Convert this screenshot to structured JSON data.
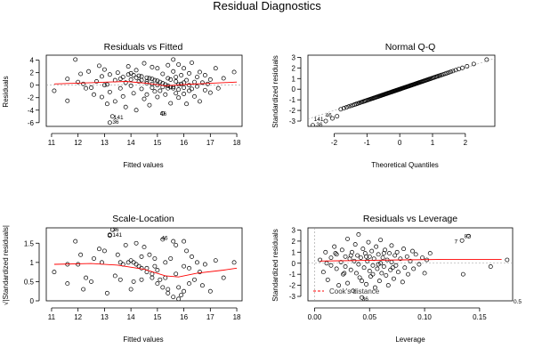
{
  "page_title": "Residual Diagnostics",
  "chart_data": [
    {
      "id": "rvf",
      "type": "scatter",
      "title": "Residuals vs Fitted",
      "xlabel": "Fitted values",
      "ylabel": "Residuals",
      "xlim": [
        10.8,
        18.2
      ],
      "ylim": [
        -6.6,
        4.8
      ],
      "xticks": [
        11,
        12,
        13,
        14,
        15,
        16,
        17,
        18
      ],
      "yticks": [
        -6,
        -4,
        -2,
        0,
        2,
        4
      ],
      "smooth_color": "#ff0000",
      "smooth": [
        [
          11.1,
          0.2
        ],
        [
          12.5,
          0.4
        ],
        [
          13.8,
          0.6
        ],
        [
          14.6,
          0.3
        ],
        [
          15.3,
          -0.1
        ],
        [
          16.0,
          0.1
        ],
        [
          17.0,
          0.3
        ],
        [
          18.0,
          0.5
        ]
      ],
      "labels": [
        {
          "text": "141",
          "x": 13.35,
          "y": -5.2
        },
        {
          "text": "36",
          "x": 13.3,
          "y": -5.9
        },
        {
          "text": "46",
          "x": 15.1,
          "y": -4.6
        }
      ],
      "points": [
        [
          11.1,
          -0.9
        ],
        [
          11.6,
          1.0
        ],
        [
          11.6,
          -2.5
        ],
        [
          11.9,
          4.1
        ],
        [
          12.1,
          1.8
        ],
        [
          12.2,
          0.2
        ],
        [
          12.3,
          -0.5
        ],
        [
          12.4,
          2.2
        ],
        [
          12.5,
          -0.4
        ],
        [
          12.6,
          -1.5
        ],
        [
          12.7,
          0.6
        ],
        [
          12.8,
          3.1
        ],
        [
          12.9,
          1.4
        ],
        [
          12.9,
          -1.9
        ],
        [
          13.0,
          2.5
        ],
        [
          13.1,
          0.1
        ],
        [
          13.1,
          -3.0
        ],
        [
          13.2,
          1.7
        ],
        [
          13.2,
          -1.1
        ],
        [
          13.3,
          -5.0
        ],
        [
          13.2,
          -6.0
        ],
        [
          13.4,
          0.8
        ],
        [
          13.4,
          -2.6
        ],
        [
          13.5,
          2.0
        ],
        [
          13.6,
          -0.5
        ],
        [
          13.7,
          1.3
        ],
        [
          13.7,
          -1.8
        ],
        [
          13.8,
          0.4
        ],
        [
          13.8,
          -3.5
        ],
        [
          13.9,
          3.0
        ],
        [
          13.9,
          1.7
        ],
        [
          14.0,
          1.9
        ],
        [
          14.0,
          0.9
        ],
        [
          14.0,
          -0.1
        ],
        [
          14.1,
          1.6
        ],
        [
          14.1,
          -1.3
        ],
        [
          14.2,
          -4.0
        ],
        [
          14.2,
          2.4
        ],
        [
          14.3,
          1.5
        ],
        [
          14.3,
          0.6
        ],
        [
          14.4,
          -0.6
        ],
        [
          14.4,
          1.4
        ],
        [
          14.5,
          3.5
        ],
        [
          14.5,
          -2.2
        ],
        [
          14.6,
          1.2
        ],
        [
          14.6,
          0.3
        ],
        [
          14.6,
          -1.5
        ],
        [
          14.7,
          1.1
        ],
        [
          14.7,
          -3.2
        ],
        [
          14.8,
          2.9
        ],
        [
          14.8,
          1.0
        ],
        [
          14.8,
          -0.4
        ],
        [
          14.9,
          0.8
        ],
        [
          14.9,
          -1.0
        ],
        [
          15.0,
          0.7
        ],
        [
          15.0,
          2.7
        ],
        [
          15.0,
          -1.9
        ],
        [
          15.1,
          0.5
        ],
        [
          15.1,
          -0.9
        ],
        [
          15.2,
          1.8
        ],
        [
          15.2,
          0.3
        ],
        [
          15.2,
          -4.5
        ],
        [
          15.3,
          0.1
        ],
        [
          15.3,
          -1.5
        ],
        [
          15.4,
          3.2
        ],
        [
          15.4,
          -0.1
        ],
        [
          15.4,
          1.1
        ],
        [
          15.5,
          -0.3
        ],
        [
          15.5,
          -2.9
        ],
        [
          15.5,
          0.9
        ],
        [
          15.6,
          4.1
        ],
        [
          15.6,
          -0.5
        ],
        [
          15.6,
          2.2
        ],
        [
          15.7,
          -1.3
        ],
        [
          15.7,
          0.6
        ],
        [
          15.8,
          -0.7
        ],
        [
          15.8,
          3.3
        ],
        [
          15.8,
          -2.0
        ],
        [
          15.9,
          0.2
        ],
        [
          15.9,
          1.6
        ],
        [
          16.0,
          -0.4
        ],
        [
          16.0,
          2.7
        ],
        [
          16.0,
          -1.4
        ],
        [
          16.1,
          0.8
        ],
        [
          16.1,
          -3.0
        ],
        [
          16.2,
          0.0
        ],
        [
          16.2,
          1.9
        ],
        [
          16.3,
          -0.6
        ],
        [
          16.3,
          3.6
        ],
        [
          16.4,
          0.5
        ],
        [
          16.4,
          -1.8
        ],
        [
          16.5,
          1.3
        ],
        [
          16.5,
          -0.2
        ],
        [
          16.6,
          2.1
        ],
        [
          16.6,
          -2.6
        ],
        [
          16.7,
          0.4
        ],
        [
          16.8,
          -0.8
        ],
        [
          16.8,
          1.6
        ],
        [
          16.9,
          0.2
        ],
        [
          17.0,
          -1.2
        ],
        [
          17.0,
          0.9
        ],
        [
          17.2,
          2.7
        ],
        [
          17.3,
          -0.5
        ],
        [
          17.5,
          1.1
        ],
        [
          17.9,
          2.1
        ],
        [
          14.2,
          1.2
        ],
        [
          14.4,
          0.8
        ],
        [
          14.6,
          0.6
        ],
        [
          14.8,
          0.2
        ],
        [
          15.0,
          0.0
        ],
        [
          15.2,
          -0.3
        ],
        [
          15.4,
          -0.5
        ],
        [
          15.6,
          -0.3
        ],
        [
          15.8,
          0.1
        ],
        [
          16.0,
          0.4
        ],
        [
          13.6,
          1.0
        ],
        [
          13.0,
          0.0
        ],
        [
          12.0,
          0.5
        ],
        [
          15.7,
          1.3
        ],
        [
          16.2,
          -0.9
        ]
      ]
    },
    {
      "id": "qq",
      "type": "scatter",
      "title": "Normal Q-Q",
      "xlabel": "Theoretical Quantiles",
      "ylabel": "Standardized residuals",
      "xlim": [
        -2.8,
        2.9
      ],
      "ylim": [
        -3.5,
        3.2
      ],
      "xticks": [
        -2,
        -1,
        0,
        1,
        2
      ],
      "yticks": [
        -3,
        -2,
        -1,
        0,
        1,
        2,
        3
      ],
      "labels": [
        {
          "text": "141",
          "x": -2.62,
          "y": -2.85
        },
        {
          "text": "46",
          "x": -2.27,
          "y": -2.45
        },
        {
          "text": "36",
          "x": -2.55,
          "y": -3.35
        }
      ],
      "n_points": 125,
      "qq_tail": [
        -3.4,
        -3.0,
        -2.75,
        -2.55
      ]
    },
    {
      "id": "sl",
      "type": "scatter",
      "title": "Scale-Location",
      "xlabel": "Fitted values",
      "ylabel": "√|Standardized residuals|",
      "xlim": [
        10.8,
        18.2
      ],
      "ylim": [
        0,
        1.9
      ],
      "xticks": [
        11,
        12,
        13,
        14,
        15,
        16,
        17,
        18
      ],
      "yticks": [
        0.0,
        0.5,
        1.0,
        1.5
      ],
      "smooth_color": "#ff0000",
      "smooth": [
        [
          11.1,
          0.95
        ],
        [
          12.5,
          0.97
        ],
        [
          13.5,
          0.93
        ],
        [
          14.5,
          0.82
        ],
        [
          15.3,
          0.65
        ],
        [
          15.8,
          0.62
        ],
        [
          16.5,
          0.72
        ],
        [
          17.5,
          0.8
        ],
        [
          18.0,
          0.85
        ]
      ],
      "labels": [
        {
          "text": "36",
          "x": 13.3,
          "y": 1.85
        },
        {
          "text": "141",
          "x": 13.3,
          "y": 1.72
        },
        {
          "text": "46",
          "x": 15.15,
          "y": 1.63
        }
      ],
      "points": [
        [
          11.1,
          0.75
        ],
        [
          11.6,
          0.95
        ],
        [
          11.6,
          0.45
        ],
        [
          11.9,
          1.55
        ],
        [
          12.1,
          1.2
        ],
        [
          12.2,
          0.3
        ],
        [
          12.3,
          0.6
        ],
        [
          12.5,
          0.5
        ],
        [
          12.6,
          1.1
        ],
        [
          12.8,
          1.35
        ],
        [
          12.9,
          1.0
        ],
        [
          13.0,
          1.3
        ],
        [
          13.1,
          0.2
        ],
        [
          13.2,
          1.7
        ],
        [
          13.3,
          1.85
        ],
        [
          13.2,
          1.72
        ],
        [
          13.4,
          0.65
        ],
        [
          13.5,
          1.2
        ],
        [
          13.6,
          0.55
        ],
        [
          13.7,
          0.95
        ],
        [
          13.8,
          1.45
        ],
        [
          13.9,
          1.0
        ],
        [
          14.0,
          1.05
        ],
        [
          14.0,
          0.3
        ],
        [
          14.1,
          1.0
        ],
        [
          14.2,
          1.5
        ],
        [
          14.3,
          0.9
        ],
        [
          14.4,
          0.55
        ],
        [
          14.5,
          1.4
        ],
        [
          14.6,
          0.85
        ],
        [
          14.7,
          1.2
        ],
        [
          14.8,
          0.7
        ],
        [
          14.9,
          0.9
        ],
        [
          15.0,
          0.8
        ],
        [
          15.1,
          0.55
        ],
        [
          15.2,
          1.6
        ],
        [
          15.3,
          0.6
        ],
        [
          15.4,
          0.3
        ],
        [
          15.5,
          1.1
        ],
        [
          15.6,
          1.55
        ],
        [
          15.7,
          0.7
        ],
        [
          15.8,
          0.35
        ],
        [
          15.9,
          0.15
        ],
        [
          16.0,
          0.9
        ],
        [
          16.1,
          1.3
        ],
        [
          16.2,
          0.45
        ],
        [
          16.3,
          1.15
        ],
        [
          16.4,
          0.55
        ],
        [
          16.5,
          1.0
        ],
        [
          16.6,
          0.75
        ],
        [
          16.8,
          0.95
        ],
        [
          17.0,
          0.25
        ],
        [
          17.2,
          1.05
        ],
        [
          17.5,
          0.6
        ],
        [
          17.9,
          1.0
        ],
        [
          14.2,
          0.95
        ],
        [
          14.4,
          0.85
        ],
        [
          14.6,
          0.75
        ],
        [
          14.8,
          0.6
        ],
        [
          15.0,
          0.45
        ],
        [
          15.2,
          0.35
        ],
        [
          15.4,
          0.2
        ],
        [
          15.6,
          0.1
        ],
        [
          15.8,
          0.05
        ],
        [
          16.0,
          0.25
        ],
        [
          13.6,
          1.0
        ],
        [
          14.1,
          0.5
        ],
        [
          15.3,
          1.0
        ],
        [
          16.2,
          0.85
        ],
        [
          16.7,
          0.4
        ],
        [
          12.0,
          0.95
        ],
        [
          14.9,
          1.1
        ],
        [
          15.7,
          1.45
        ],
        [
          16.0,
          1.55
        ],
        [
          14.4,
          1.15
        ]
      ]
    },
    {
      "id": "rvl",
      "type": "scatter",
      "title": "Residuals vs Leverage",
      "xlabel": "Leverage",
      "ylabel": "Standardized residuals",
      "xlim": [
        -0.006,
        0.18
      ],
      "ylim": [
        -3.4,
        3.2
      ],
      "xticks": [
        0.0,
        0.05,
        0.1,
        0.15
      ],
      "tick_labels": [
        "0.00",
        "0.05",
        "0.10",
        "0.15"
      ],
      "yticks": [
        -3,
        -2,
        -1,
        0,
        1,
        2,
        3
      ],
      "smooth_color": "#ff0000",
      "smooth": [
        [
          0.005,
          0.2
        ],
        [
          0.04,
          0.25
        ],
        [
          0.08,
          0.3
        ],
        [
          0.12,
          0.35
        ],
        [
          0.17,
          0.35
        ]
      ],
      "cooks_color": "#ff0000",
      "legend": "Cook's distance",
      "cooks_label": "0.5",
      "labels": [
        {
          "text": "82",
          "x": 0.136,
          "y": 2.45
        },
        {
          "text": "7",
          "x": 0.127,
          "y": 1.95
        },
        {
          "text": "36",
          "x": 0.043,
          "y": -3.25
        }
      ],
      "points": [
        [
          0.005,
          0.3
        ],
        [
          0.008,
          -0.8
        ],
        [
          0.01,
          1.0
        ],
        [
          0.012,
          -1.5
        ],
        [
          0.015,
          0.5
        ],
        [
          0.015,
          -0.2
        ],
        [
          0.018,
          1.5
        ],
        [
          0.02,
          -0.5
        ],
        [
          0.02,
          0.8
        ],
        [
          0.022,
          -2.0
        ],
        [
          0.024,
          0.1
        ],
        [
          0.025,
          1.2
        ],
        [
          0.026,
          -1.0
        ],
        [
          0.028,
          0.6
        ],
        [
          0.028,
          -0.3
        ],
        [
          0.03,
          2.2
        ],
        [
          0.03,
          -1.8
        ],
        [
          0.032,
          0.4
        ],
        [
          0.033,
          -0.6
        ],
        [
          0.034,
          1.0
        ],
        [
          0.035,
          -2.5
        ],
        [
          0.036,
          0.2
        ],
        [
          0.037,
          1.7
        ],
        [
          0.038,
          -0.9
        ],
        [
          0.039,
          0.7
        ],
        [
          0.04,
          -0.1
        ],
        [
          0.04,
          2.6
        ],
        [
          0.041,
          -1.3
        ],
        [
          0.042,
          0.5
        ],
        [
          0.043,
          -3.1
        ],
        [
          0.044,
          1.3
        ],
        [
          0.045,
          -0.4
        ],
        [
          0.046,
          0.9
        ],
        [
          0.047,
          -1.9
        ],
        [
          0.048,
          0.2
        ],
        [
          0.049,
          1.9
        ],
        [
          0.05,
          -0.7
        ],
        [
          0.05,
          0.6
        ],
        [
          0.051,
          -1.2
        ],
        [
          0.052,
          1.1
        ],
        [
          0.053,
          -0.2
        ],
        [
          0.054,
          0.4
        ],
        [
          0.055,
          -2.2
        ],
        [
          0.056,
          1.5
        ],
        [
          0.057,
          -0.5
        ],
        [
          0.058,
          0.8
        ],
        [
          0.059,
          -1.6
        ],
        [
          0.06,
          0.0
        ],
        [
          0.06,
          2.1
        ],
        [
          0.061,
          -0.9
        ],
        [
          0.062,
          0.5
        ],
        [
          0.063,
          -0.3
        ],
        [
          0.064,
          1.2
        ],
        [
          0.065,
          -1.1
        ],
        [
          0.066,
          0.3
        ],
        [
          0.067,
          -2.0
        ],
        [
          0.068,
          0.9
        ],
        [
          0.069,
          -0.6
        ],
        [
          0.07,
          1.6
        ],
        [
          0.07,
          0.1
        ],
        [
          0.072,
          -1.4
        ],
        [
          0.073,
          0.7
        ],
        [
          0.074,
          -0.2
        ],
        [
          0.075,
          1.0
        ],
        [
          0.076,
          -0.8
        ],
        [
          0.078,
          0.4
        ],
        [
          0.08,
          -1.7
        ],
        [
          0.081,
          1.3
        ],
        [
          0.082,
          -0.4
        ],
        [
          0.084,
          0.6
        ],
        [
          0.085,
          -1.0
        ],
        [
          0.087,
          0.2
        ],
        [
          0.089,
          1.1
        ],
        [
          0.09,
          -0.5
        ],
        [
          0.092,
          0.8
        ],
        [
          0.095,
          -0.1
        ],
        [
          0.098,
          0.5
        ],
        [
          0.1,
          -0.9
        ],
        [
          0.102,
          0.3
        ],
        [
          0.105,
          0.9
        ],
        [
          0.134,
          2.05
        ],
        [
          0.14,
          2.45
        ],
        [
          0.135,
          -1.0
        ],
        [
          0.16,
          -0.3
        ],
        [
          0.175,
          0.3
        ],
        [
          0.011,
          0.0
        ],
        [
          0.019,
          0.9
        ],
        [
          0.027,
          -0.9
        ],
        [
          0.033,
          0.7
        ],
        [
          0.043,
          -1.6
        ],
        [
          0.047,
          0.6
        ],
        [
          0.053,
          -1.0
        ],
        [
          0.058,
          -0.1
        ],
        [
          0.063,
          0.9
        ],
        [
          0.071,
          -0.4
        ]
      ]
    }
  ]
}
